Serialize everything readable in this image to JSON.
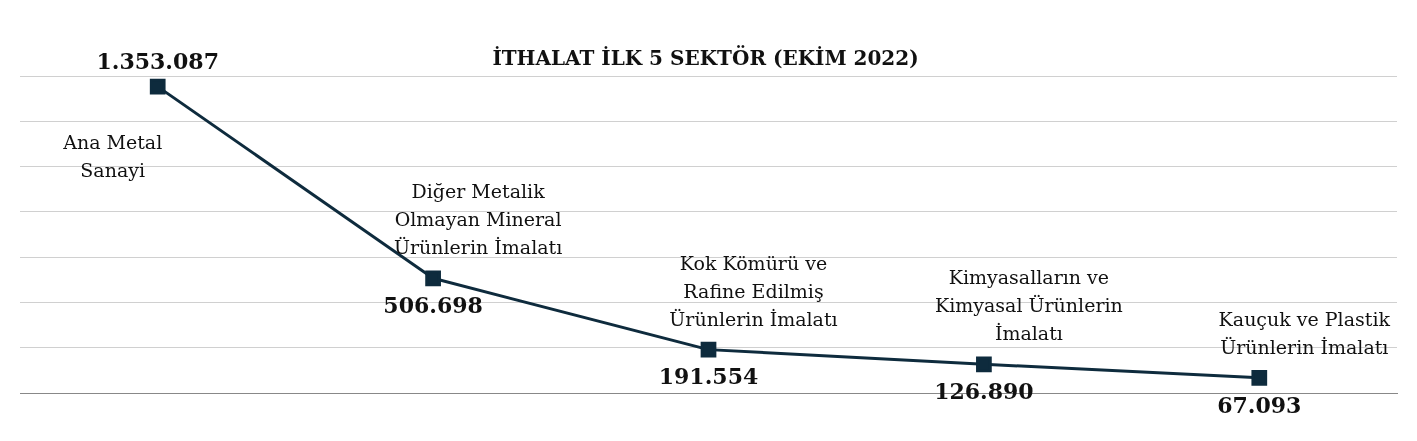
{
  "chart_data": {
    "type": "line",
    "title": "İTHALAT İLK 5 SEKTÖR (EKİM 2022)",
    "categories": [
      "Ana Metal Sanayi",
      "Diğer Metalik Olmayan Mineral Ürünlerin İmalatı",
      "Kok Kömürü ve Rafine Edilmiş Ürünlerin İmalatı",
      "Kimyasalların ve Kimyasal Ürünlerin İmalatı",
      "Kauçuk ve Plastik Ürünlerin İmalatı"
    ],
    "series": [
      {
        "color": "#0e2b3d",
        "values": [
          1353087,
          506698,
          191554,
          126890,
          67093
        ],
        "value_labels": [
          "1.353.087",
          "506.698",
          "191.554",
          "126.890",
          "67.093"
        ]
      }
    ],
    "ylim": [
      0,
      1400000
    ],
    "yticks": [
      {
        "value": 0,
        "label": null
      },
      {
        "value": 200000,
        "label": null
      },
      {
        "value": 400000,
        "label": null
      },
      {
        "value": 600000,
        "label": null
      },
      {
        "value": 800000,
        "label": null
      },
      {
        "value": 1000000,
        "label": null
      },
      {
        "value": 1200000,
        "label": null
      },
      {
        "value": 1400000,
        "label": null
      }
    ],
    "grid": "y",
    "legend": false,
    "tick_labels": false,
    "marker": "square",
    "line_style": "solid"
  }
}
